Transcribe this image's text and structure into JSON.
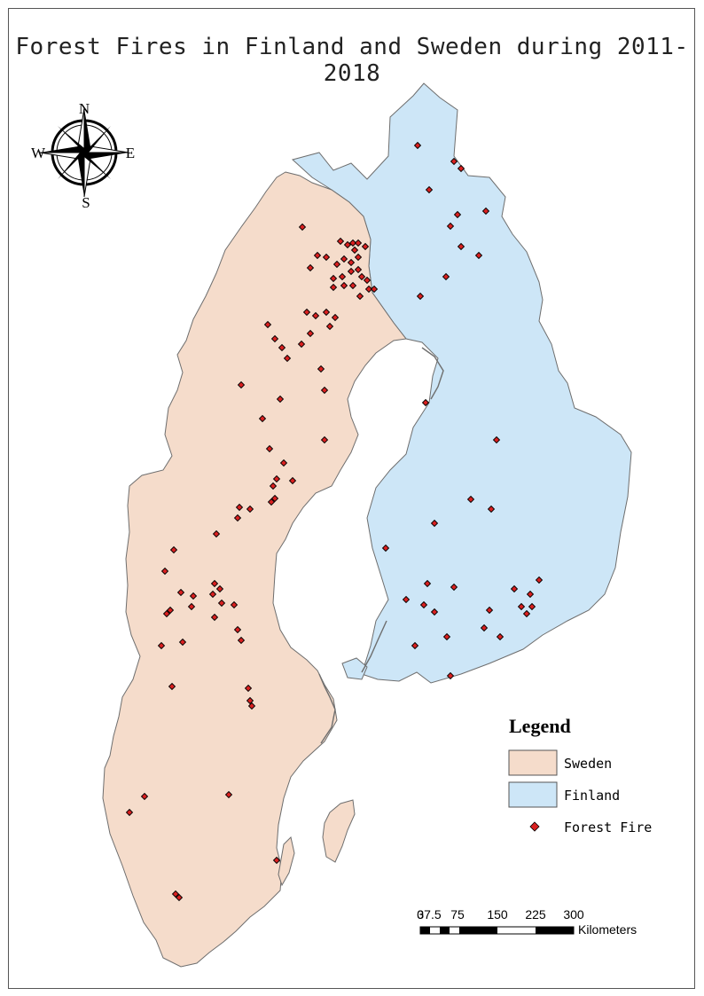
{
  "map": {
    "title": "Forest Fires in Finland and Sweden during 2011-2018",
    "compass": {
      "north": "N",
      "south": "S",
      "east": "E",
      "west": "W"
    },
    "legend": {
      "title": "Legend",
      "items": [
        {
          "label": "Sweden",
          "color": "#f5dccb",
          "kind": "area"
        },
        {
          "label": "Finland",
          "color": "#cde6f7",
          "kind": "area"
        },
        {
          "label": "Forest Fire",
          "color": "#d92020",
          "kind": "point"
        }
      ]
    },
    "scale_bar": {
      "ticks": [
        "0",
        "37.5",
        "75",
        "150",
        "225",
        "300"
      ],
      "unit": "Kilometers"
    },
    "colors": {
      "sweden_fill": "#f5dccb",
      "finland_fill": "#cde6f7",
      "coast_stroke": "#6e6e6e",
      "fire_fill": "#d92020",
      "fire_stroke": "#000000"
    }
  }
}
